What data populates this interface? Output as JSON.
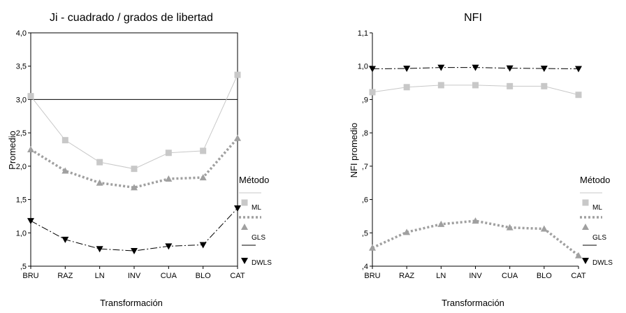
{
  "chart_data": [
    {
      "type": "line",
      "title": "Ji - cuadrado / grados de libertad",
      "xlabel": "Transformación",
      "ylabel": "Promedio",
      "categories": [
        "BRU",
        "RAZ",
        "LN",
        "INV",
        "CUA",
        "BLO",
        "CAT"
      ],
      "ylim": [
        0.5,
        4.0
      ],
      "yticks": [
        {
          "value": 0.5,
          "label": ",5"
        },
        {
          "value": 1.0,
          "label": "1,0"
        },
        {
          "value": 1.5,
          "label": "1,5"
        },
        {
          "value": 2.0,
          "label": "2,0"
        },
        {
          "value": 2.5,
          "label": "2,5"
        },
        {
          "value": 3.0,
          "label": "3,0"
        },
        {
          "value": 3.5,
          "label": "3,5"
        },
        {
          "value": 4.0,
          "label": "4,0"
        }
      ],
      "reference_line": 3.0,
      "legend": {
        "title": "Método",
        "placement": "right",
        "entries": [
          "ML",
          "GLS",
          "DWLS"
        ]
      },
      "series": [
        {
          "name": "ML",
          "color": "#c8c8c8",
          "marker": "square",
          "line": "solid-thin",
          "values": [
            3.05,
            2.39,
            2.06,
            1.96,
            2.2,
            2.23,
            3.37
          ]
        },
        {
          "name": "GLS",
          "color": "#a0a0a0",
          "marker": "triangle-up",
          "line": "dotted-thick",
          "values": [
            2.25,
            1.93,
            1.75,
            1.68,
            1.81,
            1.83,
            2.42
          ]
        },
        {
          "name": "DWLS",
          "color": "#000000",
          "marker": "triangle-down",
          "line": "dashdot",
          "values": [
            1.18,
            0.9,
            0.76,
            0.73,
            0.8,
            0.82,
            1.37
          ]
        }
      ]
    },
    {
      "type": "line",
      "title": "NFI",
      "xlabel": "Transformación",
      "ylabel": "NFI promedio",
      "categories": [
        "BRU",
        "RAZ",
        "LN",
        "INV",
        "CUA",
        "BLO",
        "CAT"
      ],
      "ylim": [
        0.4,
        1.1
      ],
      "yticks": [
        {
          "value": 0.4,
          "label": ",4"
        },
        {
          "value": 0.5,
          "label": ",5"
        },
        {
          "value": 0.6,
          "label": ",6"
        },
        {
          "value": 0.7,
          "label": ",7"
        },
        {
          "value": 0.8,
          "label": ",8"
        },
        {
          "value": 0.9,
          "label": ",9"
        },
        {
          "value": 1.0,
          "label": "1,0"
        },
        {
          "value": 1.1,
          "label": "1,1"
        }
      ],
      "legend": {
        "title": "Método",
        "placement": "right",
        "entries": [
          "ML",
          "GLS",
          "DWLS"
        ]
      },
      "series": [
        {
          "name": "ML",
          "color": "#c8c8c8",
          "marker": "square",
          "line": "solid-thin",
          "values": [
            0.922,
            0.937,
            0.943,
            0.943,
            0.94,
            0.94,
            0.914
          ]
        },
        {
          "name": "GLS",
          "color": "#a0a0a0",
          "marker": "triangle-up",
          "line": "dotted-thick",
          "values": [
            0.455,
            0.502,
            0.526,
            0.536,
            0.516,
            0.512,
            0.432
          ]
        },
        {
          "name": "DWLS",
          "color": "#000000",
          "marker": "triangle-down",
          "line": "dashdot",
          "values": [
            0.992,
            0.993,
            0.996,
            0.996,
            0.994,
            0.993,
            0.992
          ]
        }
      ]
    }
  ]
}
